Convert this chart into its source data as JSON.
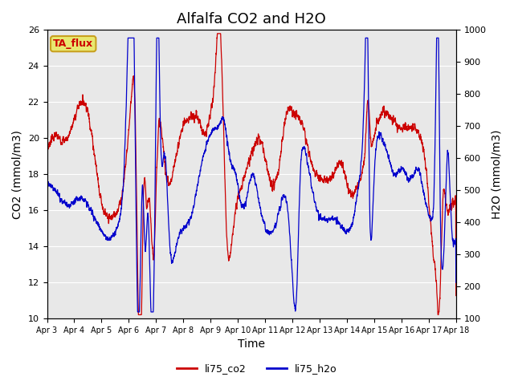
{
  "title": "Alfalfa CO2 and H2O",
  "xlabel": "Time",
  "ylabel_left": "CO2 (mmol/m3)",
  "ylabel_right": "H2O (mmol/m3)",
  "ylim_left": [
    10,
    26
  ],
  "ylim_right": [
    100,
    1000
  ],
  "yticks_left": [
    10,
    12,
    14,
    16,
    18,
    20,
    22,
    24,
    26
  ],
  "yticks_right": [
    100,
    200,
    300,
    400,
    500,
    600,
    700,
    800,
    900,
    1000
  ],
  "xtick_labels": [
    "Apr 3",
    "Apr 4",
    "Apr 5",
    "Apr 6",
    "Apr 7",
    "Apr 8",
    "Apr 9",
    "Apr 10",
    "Apr 11",
    "Apr 12",
    "Apr 13",
    "Apr 14",
    "Apr 15",
    "Apr 16",
    "Apr 17",
    "Apr 18"
  ],
  "color_co2": "#cc0000",
  "color_h2o": "#0000cc",
  "label_co2": "li75_co2",
  "label_h2o": "li75_h2o",
  "annotation_text": "TA_flux",
  "annotation_bg": "#e8e870",
  "annotation_border": "#c8a020",
  "bg_color": "#e8e8e8",
  "title_fontsize": 13,
  "axis_label_fontsize": 10,
  "tick_fontsize": 8
}
